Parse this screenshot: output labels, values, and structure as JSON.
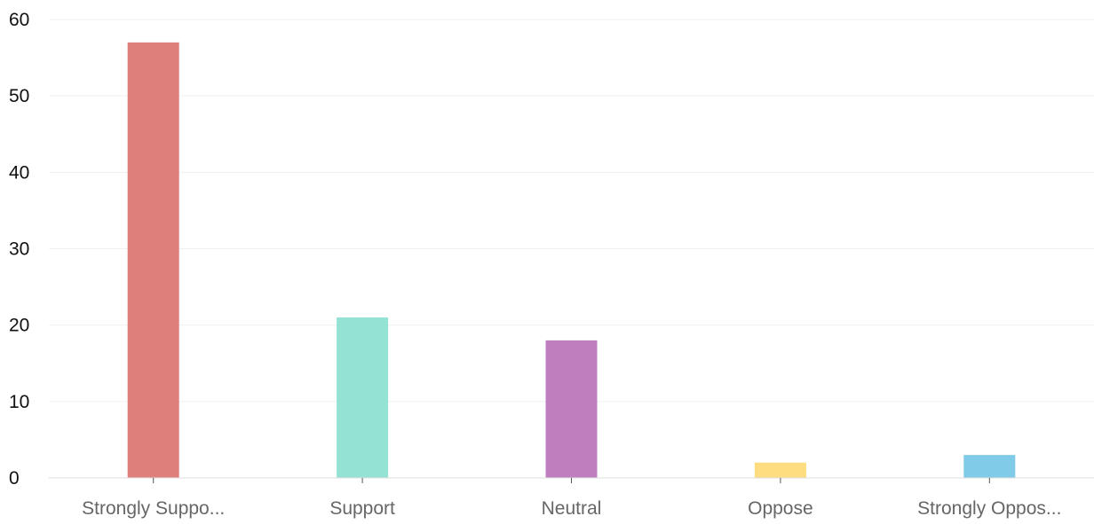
{
  "chart_data": {
    "type": "bar",
    "categories": [
      "Strongly Suppo...",
      "Support",
      "Neutral",
      "Oppose",
      "Strongly Oppos..."
    ],
    "values": [
      57,
      21,
      18,
      2,
      3
    ],
    "colors": [
      "#df7f7c",
      "#93e2d4",
      "#bf7fbf",
      "#fddd7f",
      "#7fcbe8"
    ],
    "ylim": [
      0,
      60
    ],
    "yticks": [
      0,
      10,
      20,
      30,
      40,
      50,
      60
    ],
    "grid": true,
    "legend": "none"
  }
}
